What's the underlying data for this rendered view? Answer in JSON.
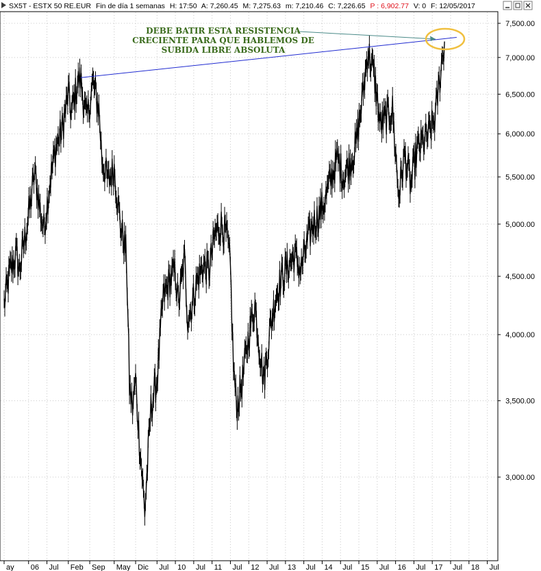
{
  "header": {
    "symbol": "SX5T - ESTX 50 RE.EUR",
    "period": "Fin de día 1 semanas",
    "time": "H: 17:50",
    "open": "A: 7,260.45",
    "high": "M: 7,275.63",
    "low": "m: 7,210.46",
    "close": "C: 7,226.65",
    "prev": "P : 6,902.77",
    "volume": "V: 0",
    "date": "F: 12/05/2017"
  },
  "colors": {
    "price_line": "#000000",
    "resistance_line": "#1f2ad0",
    "annotation_text": "#3a6b1c",
    "circle": "#f0c040",
    "grid": "#c8c8c8",
    "header_alert": "#e0101a"
  },
  "annotation": {
    "lines": [
      "DEBE BATIR ESTA RESISTENCIA",
      "CRECIENTE PARA QUE HABLEMOS DE",
      "SUBIDA LIBRE ABSOLUTA"
    ]
  },
  "chart_data": {
    "type": "line",
    "title": "SX5T - ESTX 50 RE.EUR",
    "y_scale": "log",
    "ylim": [
      2600,
      7700
    ],
    "y_ticks": [
      3000,
      3500,
      4000,
      4500,
      5000,
      5500,
      6000,
      6500,
      7000,
      7500
    ],
    "y_tick_labels": [
      "3,000.00",
      "3,500.00",
      "4,000.00",
      "4,500.00",
      "5,000.00",
      "5,500.00",
      "6,000.00",
      "6,500.00",
      "7,000.00",
      "7,500.00"
    ],
    "x_range": [
      "2005-05",
      "2018-10"
    ],
    "x_ticks": [
      {
        "date": "2005-05",
        "label": "ay"
      },
      {
        "date": "2006-01",
        "label": "06"
      },
      {
        "date": "2006-07",
        "label": "Jul"
      },
      {
        "date": "2007-02",
        "label": "Feb"
      },
      {
        "date": "2007-09",
        "label": "Sep"
      },
      {
        "date": "2008-05",
        "label": "May"
      },
      {
        "date": "2008-12",
        "label": "Dic"
      },
      {
        "date": "2009-07",
        "label": "Jul"
      },
      {
        "date": "2010-01",
        "label": "10"
      },
      {
        "date": "2010-07",
        "label": "Jul"
      },
      {
        "date": "2011-01",
        "label": "11"
      },
      {
        "date": "2011-07",
        "label": "Jul"
      },
      {
        "date": "2012-01",
        "label": "12"
      },
      {
        "date": "2012-07",
        "label": "Jul"
      },
      {
        "date": "2013-01",
        "label": "13"
      },
      {
        "date": "2013-07",
        "label": "Jul"
      },
      {
        "date": "2014-01",
        "label": "14"
      },
      {
        "date": "2014-07",
        "label": "Jul"
      },
      {
        "date": "2015-01",
        "label": "15"
      },
      {
        "date": "2015-07",
        "label": "Jul"
      },
      {
        "date": "2016-01",
        "label": "16"
      },
      {
        "date": "2016-07",
        "label": "Jul"
      },
      {
        "date": "2017-01",
        "label": "17"
      },
      {
        "date": "2017-07",
        "label": "Jul"
      },
      {
        "date": "2018-01",
        "label": "18"
      },
      {
        "date": "2018-07",
        "label": "Jul"
      }
    ],
    "series": [
      {
        "points": [
          [
            "2005-05",
            4250
          ],
          [
            "2005-07",
            4550
          ],
          [
            "2005-09",
            4700
          ],
          [
            "2005-10",
            4550
          ],
          [
            "2005-12",
            4900
          ],
          [
            "2006-02",
            5300
          ],
          [
            "2006-03",
            5550
          ],
          [
            "2006-05",
            5100
          ],
          [
            "2006-06",
            4950
          ],
          [
            "2006-08",
            5450
          ],
          [
            "2006-10",
            5850
          ],
          [
            "2006-12",
            6050
          ],
          [
            "2007-02",
            6500
          ],
          [
            "2007-03",
            6250
          ],
          [
            "2007-05",
            6650
          ],
          [
            "2007-06",
            6700
          ],
          [
            "2007-08",
            6150
          ],
          [
            "2007-09",
            6400
          ],
          [
            "2007-10",
            6650
          ],
          [
            "2007-12",
            6300
          ],
          [
            "2008-01",
            5700
          ],
          [
            "2008-03",
            5450
          ],
          [
            "2008-05",
            5600
          ],
          [
            "2008-07",
            5000
          ],
          [
            "2008-09",
            4700
          ],
          [
            "2008-10",
            3600
          ],
          [
            "2008-11",
            3450
          ],
          [
            "2008-12",
            3650
          ],
          [
            "2009-01",
            3300
          ],
          [
            "2009-03",
            2800
          ],
          [
            "2009-05",
            3450
          ],
          [
            "2009-07",
            3650
          ],
          [
            "2009-09",
            4300
          ],
          [
            "2009-11",
            4450
          ],
          [
            "2010-01",
            4550
          ],
          [
            "2010-02",
            4250
          ],
          [
            "2010-04",
            4650
          ],
          [
            "2010-05",
            4150
          ],
          [
            "2010-06",
            4200
          ],
          [
            "2010-08",
            4450
          ],
          [
            "2010-10",
            4600
          ],
          [
            "2010-12",
            4550
          ],
          [
            "2011-02",
            4900
          ],
          [
            "2011-04",
            5000
          ],
          [
            "2011-06",
            4850
          ],
          [
            "2011-07",
            4550
          ],
          [
            "2011-08",
            3750
          ],
          [
            "2011-09",
            3450
          ],
          [
            "2011-11",
            3650
          ],
          [
            "2012-01",
            4000
          ],
          [
            "2012-03",
            4250
          ],
          [
            "2012-05",
            3800
          ],
          [
            "2012-06",
            3650
          ],
          [
            "2012-08",
            4050
          ],
          [
            "2012-10",
            4350
          ],
          [
            "2012-12",
            4500
          ],
          [
            "2013-02",
            4600
          ],
          [
            "2013-04",
            4700
          ],
          [
            "2013-06",
            4550
          ],
          [
            "2013-08",
            4800
          ],
          [
            "2013-10",
            5000
          ],
          [
            "2013-12",
            5100
          ],
          [
            "2014-02",
            5250
          ],
          [
            "2014-04",
            5500
          ],
          [
            "2014-06",
            5700
          ],
          [
            "2014-08",
            5500
          ],
          [
            "2014-10",
            5650
          ],
          [
            "2014-12",
            5850
          ],
          [
            "2015-02",
            6400
          ],
          [
            "2015-04",
            7100
          ],
          [
            "2015-06",
            6750
          ],
          [
            "2015-08",
            6100
          ],
          [
            "2015-10",
            6200
          ],
          [
            "2015-12",
            6300
          ],
          [
            "2016-02",
            5300
          ],
          [
            "2016-04",
            5750
          ],
          [
            "2016-06",
            5400
          ],
          [
            "2016-08",
            5800
          ],
          [
            "2016-10",
            5900
          ],
          [
            "2016-12",
            6000
          ],
          [
            "2017-02",
            6200
          ],
          [
            "2017-03",
            6550
          ],
          [
            "2017-04",
            6900
          ],
          [
            "2017-05",
            7230
          ]
        ]
      }
    ],
    "resistance_line": [
      [
        "2007-06",
        6720
      ],
      [
        "2015-04",
        7150
      ],
      [
        "2017-09",
        7290
      ]
    ]
  }
}
